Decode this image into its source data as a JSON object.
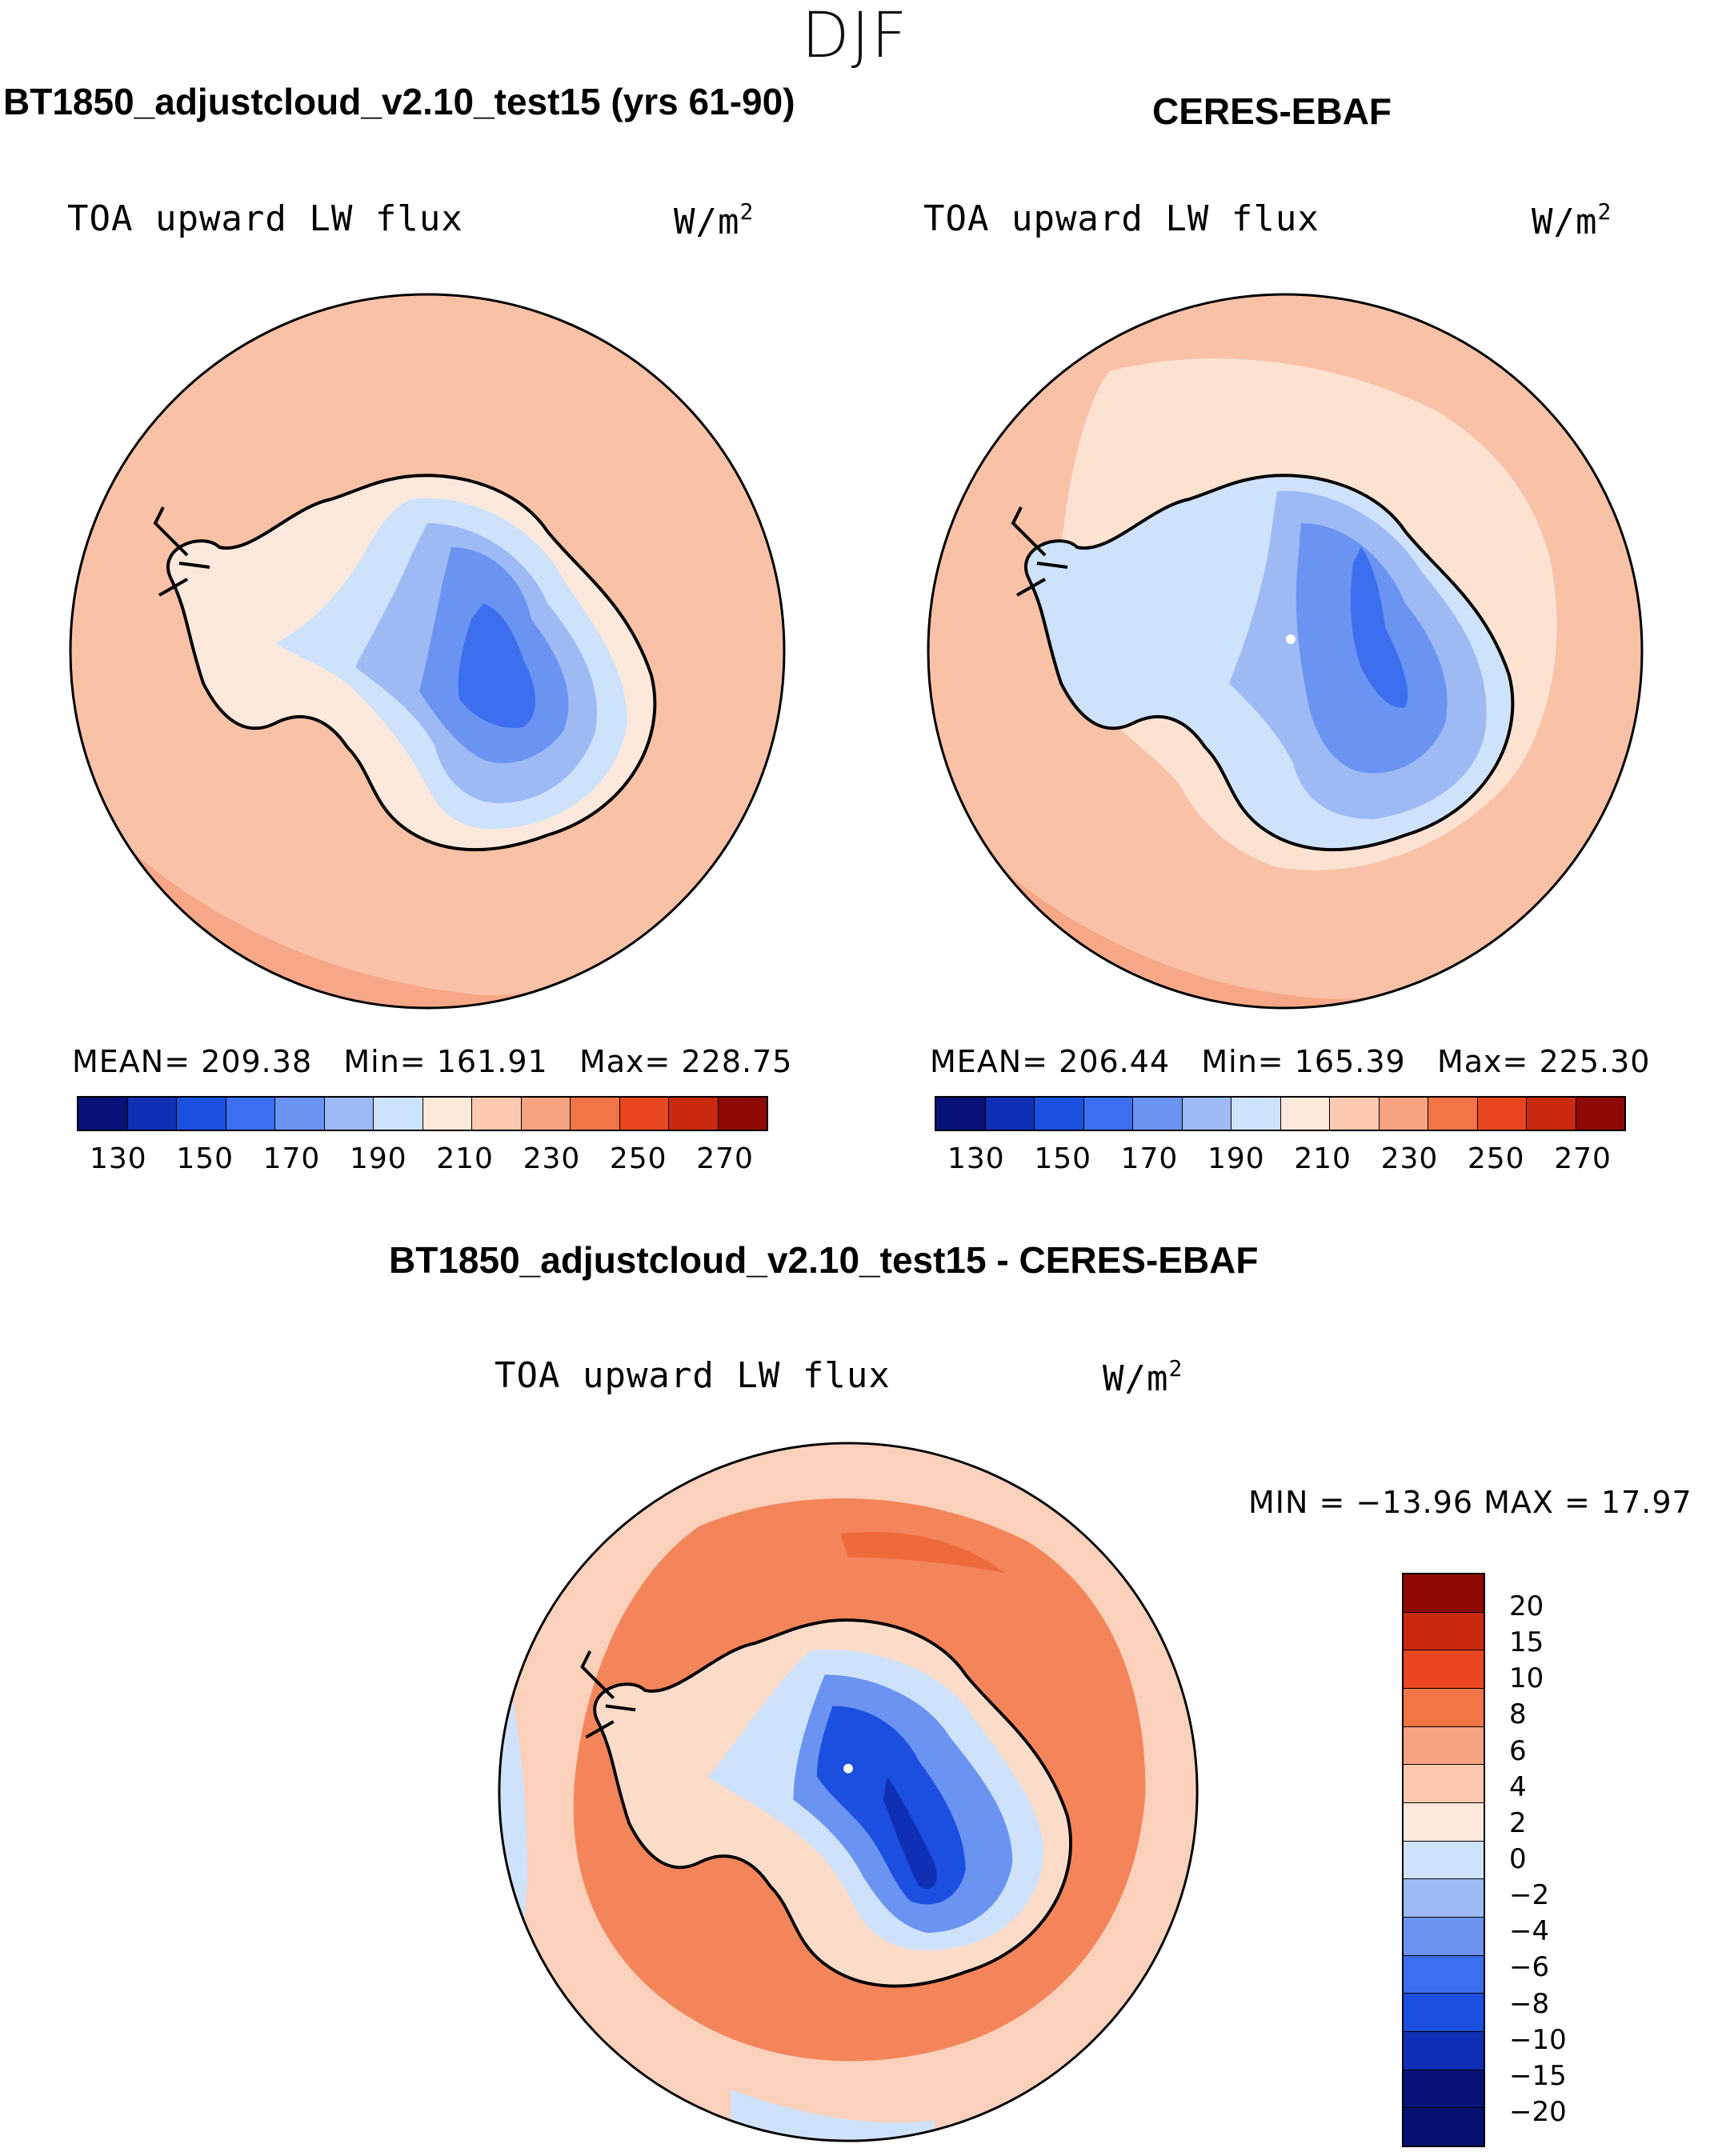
{
  "season": "DJF",
  "panels": [
    {
      "title": "BT1850_adjustcloud_v2.10_test15 (yrs 61-90)",
      "variable": "TOA upward LW flux",
      "units": "W/m",
      "units_exp": "2",
      "stats": {
        "mean_label": "MEAN=",
        "mean": "209.38",
        "min_label": "Min=",
        "min": "161.91",
        "max_label": "Max=",
        "max": "228.75"
      }
    },
    {
      "title": "CERES-EBAF",
      "variable": "TOA upward LW flux",
      "units": "W/m",
      "units_exp": "2",
      "stats": {
        "mean_label": "MEAN=",
        "mean": "206.44",
        "min_label": "Min=",
        "min": "165.39",
        "max_label": "Max=",
        "max": "225.30"
      }
    }
  ],
  "diff_panel": {
    "title": "BT1850_adjustcloud_v2.10_test15 - CERES-EBAF",
    "variable": "TOA upward LW flux",
    "units": "W/m",
    "units_exp": "2",
    "minmax_text": "MIN = −13.96 MAX =   17.97"
  },
  "colorbar_abs": {
    "ticks": [
      "130",
      "150",
      "170",
      "190",
      "210",
      "230",
      "250",
      "270"
    ],
    "colors": [
      "#08127a",
      "#0f2fb4",
      "#1a4fe0",
      "#3b6ff0",
      "#6a93f2",
      "#9dbaf5",
      "#cfe2fb",
      "#fde9dc",
      "#fbc8b0",
      "#f7a382",
      "#f27548",
      "#e8471f",
      "#c92a10",
      "#8f0a05"
    ]
  },
  "colorbar_diff": {
    "labels": [
      "20",
      "15",
      "10",
      "8",
      "6",
      "4",
      "2",
      "0",
      "−2",
      "−4",
      "−6",
      "−8",
      "−10",
      "−15",
      "−20"
    ],
    "colors": [
      "#8f0a05",
      "#c92a10",
      "#e8471f",
      "#f27548",
      "#f7a382",
      "#fbc8b0",
      "#fde9dc",
      "#cfe2fb",
      "#9dbaf5",
      "#6a93f2",
      "#3b6ff0",
      "#1a4fe0",
      "#0f2fb4",
      "#08127a",
      "#061070"
    ]
  },
  "map_colors": {
    "ocean_abs": "#f9c1a6",
    "ocean_abs_edge": "#f6a788",
    "ocean_obs_light": "#fde2d2",
    "diff_outer": "#fbd1bb",
    "diff_ring": "#f4845a",
    "diff_ring_dark": "#ee6a3d",
    "diff_inner": "#fcdcc9"
  }
}
